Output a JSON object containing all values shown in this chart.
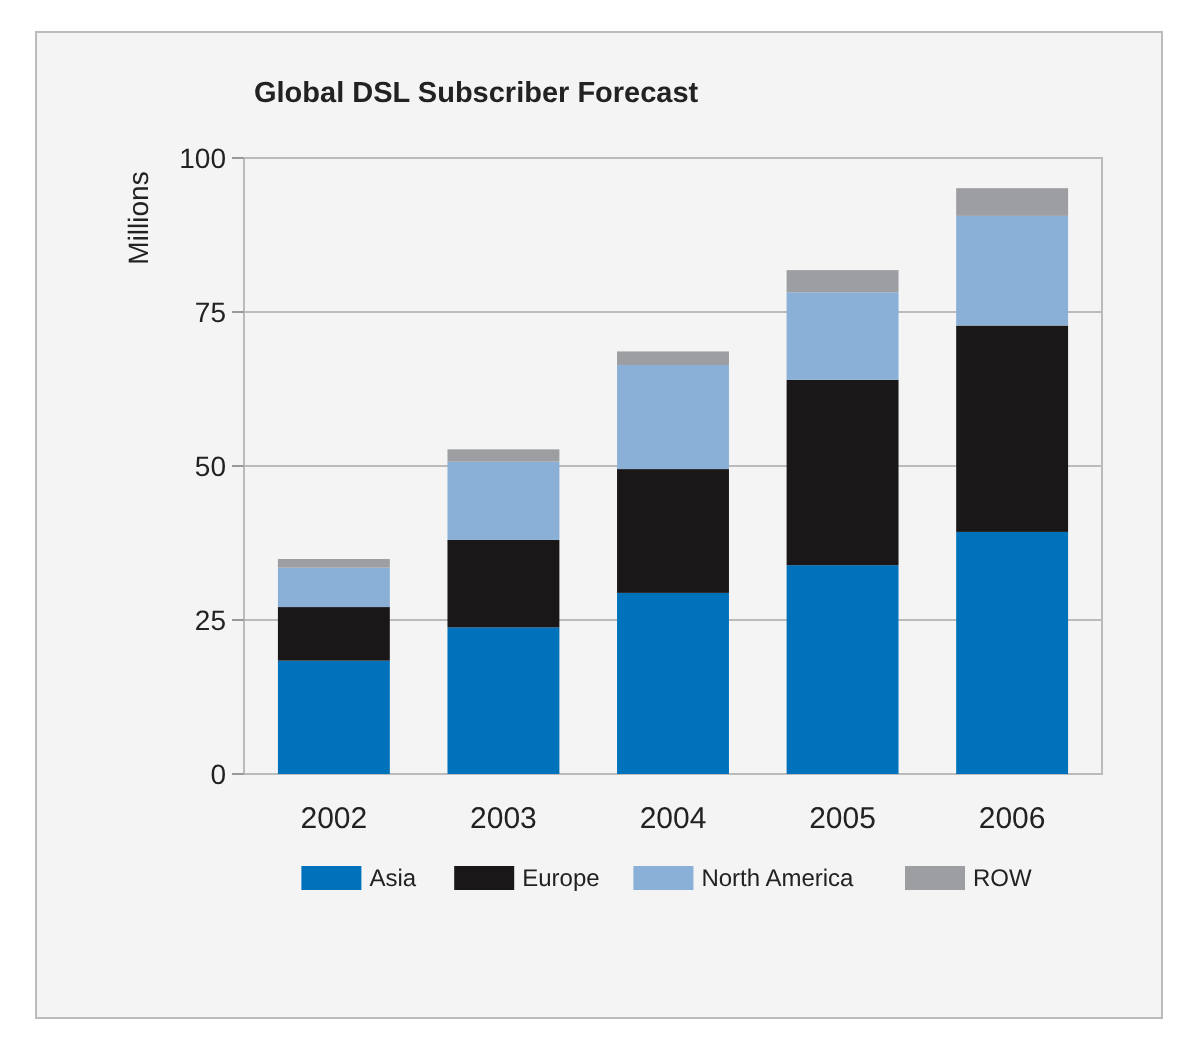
{
  "chart_data": {
    "type": "bar",
    "title": "Global DSL Subscriber Forecast",
    "ylabel": "Millions",
    "categories": [
      "2002",
      "2003",
      "2004",
      "2005",
      "2006"
    ],
    "stacked": true,
    "series": [
      {
        "name": "Asia",
        "color": "#0072bc",
        "values": [
          18.4,
          23.8,
          29.4,
          33.9,
          39.3
        ]
      },
      {
        "name": "Europe",
        "color": "#1a1718",
        "values": [
          8.7,
          14.2,
          20.1,
          30.1,
          33.5
        ]
      },
      {
        "name": "North America",
        "color": "#8ab0d8",
        "values": [
          6.4,
          12.7,
          16.9,
          14.2,
          17.8
        ]
      },
      {
        "name": "ROW",
        "color": "#9d9ea2",
        "values": [
          1.4,
          2.0,
          2.2,
          3.6,
          4.5
        ]
      }
    ],
    "ylim": [
      0,
      100
    ],
    "yticks": [
      0,
      25,
      50,
      75,
      100
    ],
    "grid": "y",
    "legend": "bottom"
  }
}
